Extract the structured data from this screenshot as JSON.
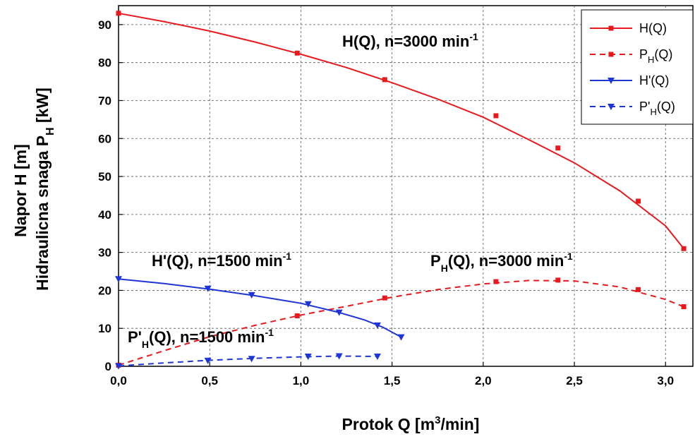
{
  "chart_data": {
    "type": "line",
    "xlabel": "Protok Q [m",
    "xlabel_sup": "3",
    "xlabel_end": "/min]",
    "ylabel_line1": "Napor H [m]",
    "ylabel_line2": "Hidraulicna snaga P",
    "ylabel_line2_sub": "H",
    "ylabel_line2_end": " [kW]",
    "xlim": [
      0,
      3.15
    ],
    "ylim": [
      0,
      95
    ],
    "x_ticks": [
      0,
      0.5,
      1.0,
      1.5,
      2.0,
      2.5,
      3.0
    ],
    "x_tick_labels": [
      "0,0",
      "0,5",
      "1,0",
      "1,5",
      "2,0",
      "2,5",
      "3,0"
    ],
    "y_ticks": [
      0,
      10,
      20,
      30,
      40,
      50,
      60,
      70,
      80,
      90
    ],
    "y_tick_labels": [
      "0",
      "10",
      "20",
      "30",
      "40",
      "50",
      "60",
      "70",
      "80",
      "90"
    ],
    "grid": true,
    "legend_position": "top-right",
    "series": [
      {
        "name": "H(Q)",
        "color": "#e8191d",
        "dash": "solid",
        "marker": "square",
        "points": [
          [
            0.0,
            93
          ],
          [
            0.98,
            82.5
          ],
          [
            1.46,
            75.5
          ],
          [
            2.07,
            66
          ],
          [
            2.41,
            57.5
          ],
          [
            2.85,
            43.5
          ],
          [
            3.1,
            31
          ]
        ],
        "curve": [
          [
            0.0,
            93
          ],
          [
            0.25,
            90.8
          ],
          [
            0.5,
            88.3
          ],
          [
            0.75,
            85.4
          ],
          [
            1.0,
            82.2
          ],
          [
            1.25,
            78.7
          ],
          [
            1.5,
            74.7
          ],
          [
            1.75,
            70.4
          ],
          [
            2.0,
            65.6
          ],
          [
            2.25,
            59.7
          ],
          [
            2.5,
            53.6
          ],
          [
            2.75,
            46.2
          ],
          [
            3.0,
            37.0
          ],
          [
            3.1,
            31.0
          ]
        ]
      },
      {
        "name": "P",
        "name_sub": "H",
        "name_end": "(Q)",
        "color": "#e8191d",
        "dash": "dashed",
        "marker": "square",
        "points": [
          [
            0.0,
            0.3
          ],
          [
            0.98,
            13.3
          ],
          [
            1.46,
            18
          ],
          [
            2.07,
            22.3
          ],
          [
            2.41,
            22.7
          ],
          [
            2.85,
            20.2
          ],
          [
            3.1,
            15.7
          ]
        ],
        "curve": [
          [
            0.0,
            0.3
          ],
          [
            0.25,
            4.1
          ],
          [
            0.5,
            7.8
          ],
          [
            0.75,
            10.8
          ],
          [
            1.0,
            13.5
          ],
          [
            1.25,
            15.8
          ],
          [
            1.5,
            18.2
          ],
          [
            1.75,
            20.2
          ],
          [
            2.0,
            21.7
          ],
          [
            2.25,
            22.6
          ],
          [
            2.5,
            22.5
          ],
          [
            2.75,
            20.9
          ],
          [
            3.0,
            17.6
          ],
          [
            3.1,
            15.7
          ]
        ]
      },
      {
        "name": "H'(Q)",
        "color": "#1e35d6",
        "dash": "solid",
        "marker": "triangle-down",
        "points": [
          [
            0.0,
            23
          ],
          [
            0.49,
            20.5
          ],
          [
            0.73,
            18.8
          ],
          [
            1.04,
            16.4
          ],
          [
            1.21,
            14.2
          ],
          [
            1.42,
            10.8
          ],
          [
            1.55,
            7.7
          ]
        ],
        "curve": [
          [
            0.0,
            23
          ],
          [
            0.25,
            21.8
          ],
          [
            0.5,
            20.3
          ],
          [
            0.75,
            18.6
          ],
          [
            1.0,
            16.6
          ],
          [
            1.2,
            14.3
          ],
          [
            1.35,
            12.2
          ],
          [
            1.45,
            10.3
          ],
          [
            1.55,
            7.7
          ]
        ]
      },
      {
        "name": "P'",
        "name_sub": "H",
        "name_end": "(Q)",
        "color": "#1e35d6",
        "dash": "dashed",
        "marker": "triangle-down",
        "points": [
          [
            0.0,
            0.1
          ],
          [
            0.49,
            1.5
          ],
          [
            0.73,
            2.0
          ],
          [
            1.04,
            2.6
          ],
          [
            1.21,
            2.7
          ],
          [
            1.42,
            2.6
          ]
        ],
        "curve": [
          [
            0.0,
            0.1
          ],
          [
            0.25,
            0.9
          ],
          [
            0.5,
            1.6
          ],
          [
            0.75,
            2.1
          ],
          [
            1.0,
            2.5
          ],
          [
            1.21,
            2.7
          ],
          [
            1.42,
            2.6
          ]
        ]
      }
    ],
    "annotations": [
      {
        "main": "H(Q), n=3000 min",
        "sup": "-1"
      },
      {
        "main": "P",
        "sub": "H",
        "end": "(Q), n=3000 min",
        "sup": "-1"
      },
      {
        "main": "H'(Q), n=1500 min",
        "sup": "-1"
      },
      {
        "main": "P'",
        "sub": "H",
        "end": "(Q), n=1500 min",
        "sup": "-1"
      }
    ]
  }
}
